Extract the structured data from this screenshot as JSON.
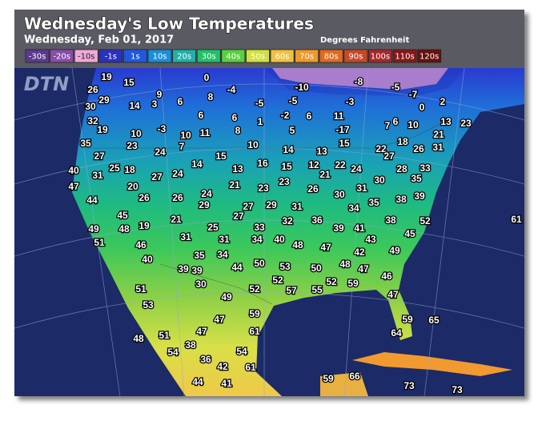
{
  "header": {
    "title": "Wednesday's Low Temperatures",
    "subtitle": "Wednesday, Feb 01, 2017",
    "units": "Degrees Fahrenheit"
  },
  "legend": [
    "-30s",
    "-20s",
    "-10s",
    "-1s",
    "1s",
    "10s",
    "20s",
    "30s",
    "40s",
    "50s",
    "60s",
    "70s",
    "80s",
    "90s",
    "100s",
    "110s",
    "120s"
  ],
  "watermark": "DTN",
  "temperatures": [
    19,
    15,
    0,
    -10,
    -8,
    -5,
    26,
    9,
    -4,
    -7,
    29,
    30,
    14,
    3,
    6,
    8,
    -5,
    -5,
    -3,
    2,
    0,
    32,
    6,
    6,
    1,
    -2,
    6,
    11,
    13,
    23,
    19,
    10,
    -3,
    10,
    11,
    8,
    5,
    -17,
    7,
    6,
    10,
    21,
    35,
    23,
    7,
    10,
    14,
    13,
    15,
    22,
    27,
    18,
    26,
    31,
    27,
    24,
    15,
    40,
    25,
    18,
    14,
    13,
    16,
    15,
    12,
    22,
    24,
    28,
    33,
    31,
    27,
    24,
    21,
    35,
    47,
    20,
    21,
    23,
    23,
    26,
    30,
    31,
    30,
    44,
    26,
    26,
    24,
    29,
    27,
    29,
    31,
    34,
    35,
    38,
    39,
    45,
    21,
    27,
    32,
    36,
    38,
    52,
    61,
    49,
    48,
    19,
    25,
    33,
    39,
    41,
    51,
    46,
    31,
    31,
    34,
    40,
    48,
    47,
    43,
    45,
    49,
    40,
    35,
    34,
    50,
    42,
    48,
    39,
    39,
    44,
    53,
    50,
    47,
    30,
    52,
    52,
    59,
    46,
    51,
    52,
    57,
    55,
    47,
    49,
    53,
    59,
    47,
    59,
    65,
    51,
    47,
    61,
    64,
    48,
    38,
    54,
    54,
    36,
    42,
    61,
    59,
    66,
    73,
    73,
    44,
    41
  ]
}
